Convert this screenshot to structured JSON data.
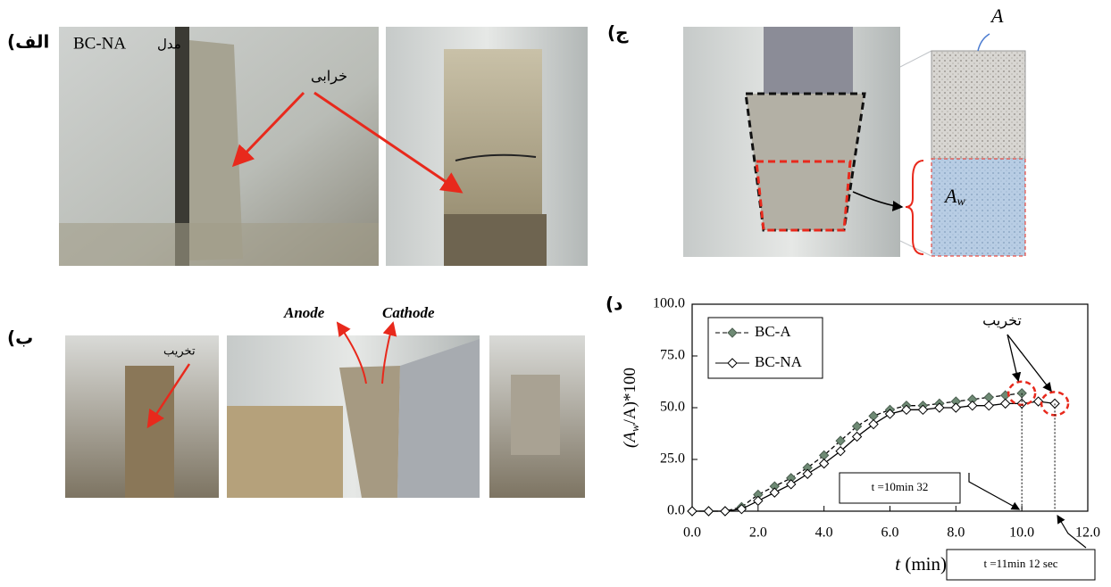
{
  "panels": {
    "a": {
      "label": "(الف",
      "model_text": "BC-NA",
      "model_word": "مدل",
      "damage": "خرابی"
    },
    "b": {
      "label": "(ب",
      "damage": "تخریب",
      "anode": "Anode",
      "cathode": "Cathode"
    },
    "c": {
      "label": "(ج",
      "area": "A",
      "wet_area": [
        "A",
        "w"
      ]
    },
    "d": {
      "label": "(د"
    }
  },
  "chart_data": {
    "type": "line",
    "ylabel_parts": [
      "(A",
      "w",
      "/A)*100"
    ],
    "xlabel_parts": [
      "t",
      " (min)"
    ],
    "annotation": "تخریب",
    "time_labels": [
      "t =10min 32",
      "t =11min 12 sec"
    ],
    "xlim": [
      0,
      12
    ],
    "ylim": [
      0,
      100
    ],
    "xticks": [
      {
        "value": 0,
        "label": "0.0"
      },
      {
        "value": 2,
        "label": "2.0"
      },
      {
        "value": 4,
        "label": "4.0"
      },
      {
        "value": 6,
        "label": "6.0"
      },
      {
        "value": 8,
        "label": "8.0"
      },
      {
        "value": 10,
        "label": "10.0"
      },
      {
        "value": 12,
        "label": "12.0"
      }
    ],
    "yticks": [
      {
        "value": 0,
        "label": "0.0"
      },
      {
        "value": 25,
        "label": "25.0"
      },
      {
        "value": 50,
        "label": "50.0"
      },
      {
        "value": 75,
        "label": "75.0"
      },
      {
        "value": 100,
        "label": "100.0"
      }
    ],
    "series": [
      {
        "name": "BC-A",
        "color": "#6e8a74",
        "dashed": true,
        "x": [
          0,
          0.5,
          1.0,
          1.5,
          2.0,
          2.5,
          3.0,
          3.5,
          4.0,
          4.5,
          5.0,
          5.5,
          6.0,
          6.5,
          7.0,
          7.5,
          8.0,
          8.5,
          9.0,
          9.5,
          10.0
        ],
        "values": [
          0,
          0,
          0,
          2,
          8,
          12,
          16,
          21,
          27,
          34,
          41,
          46,
          49,
          51,
          51,
          52,
          53,
          54,
          55,
          56,
          57
        ]
      },
      {
        "name": "BC-NA",
        "color": "#ffffff",
        "dashed": false,
        "x": [
          0,
          0.5,
          1.0,
          1.5,
          2.0,
          2.5,
          3.0,
          3.5,
          4.0,
          4.5,
          5.0,
          5.5,
          6.0,
          6.5,
          7.0,
          7.5,
          8.0,
          8.5,
          9.0,
          9.5,
          10.0,
          10.5,
          11.0
        ],
        "values": [
          0,
          0,
          0,
          1,
          5,
          9,
          13,
          18,
          23,
          29,
          36,
          42,
          47,
          49,
          49,
          50,
          50,
          51,
          51,
          52,
          52,
          53,
          52
        ]
      }
    ]
  }
}
